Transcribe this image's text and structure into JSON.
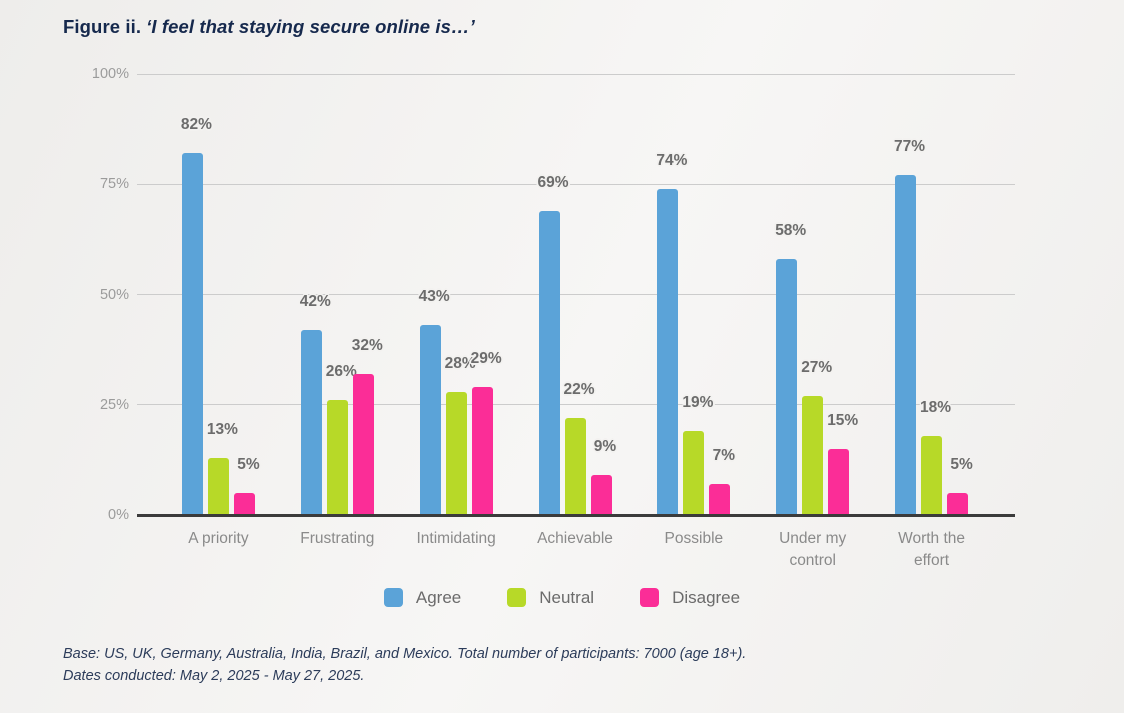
{
  "figure": {
    "label": "Figure ii.",
    "quote": "‘I feel that staying secure online is…’"
  },
  "footnote": "Base: US, UK, Germany, Australia, India, Brazil, and Mexico. Total number of participants: 7000 (age 18+). Dates conducted: May 2, 2025 - May 27, 2025.",
  "colors": {
    "background": "#f2f1ef",
    "title": "#16294d",
    "footnote": "#2c3c5a",
    "grid": "#cccccc",
    "axis": "#3b3b3b",
    "tick_label": "#9b9b9b",
    "category_label": "#8a8a8a",
    "value_label": "#6c6c6c",
    "legend_label": "#6b6b6b"
  },
  "chart_data": {
    "type": "bar",
    "title": "I feel that staying secure online is…",
    "categories": [
      "A priority",
      "Frustrating",
      "Intimidating",
      "Achievable",
      "Possible",
      "Under my control",
      "Worth the effort"
    ],
    "series": [
      {
        "name": "Agree",
        "color": "#5ba3d8",
        "values": [
          82,
          42,
          43,
          69,
          74,
          58,
          77
        ]
      },
      {
        "name": "Neutral",
        "color": "#b7d928",
        "values": [
          13,
          26,
          28,
          22,
          19,
          27,
          18
        ]
      },
      {
        "name": "Disagree",
        "color": "#fb2d97",
        "values": [
          5,
          32,
          29,
          9,
          7,
          15,
          5
        ]
      }
    ],
    "xlabel": "",
    "ylabel": "",
    "ylim": [
      0,
      100
    ],
    "yticks": [
      {
        "value": 0,
        "label": "0%"
      },
      {
        "value": 25,
        "label": "25%"
      },
      {
        "value": 50,
        "label": "50%"
      },
      {
        "value": 75,
        "label": "75%"
      },
      {
        "value": 100,
        "label": "100%"
      }
    ],
    "grid": true,
    "legend_position": "bottom",
    "value_labels": true,
    "value_label_suffix": "%"
  }
}
